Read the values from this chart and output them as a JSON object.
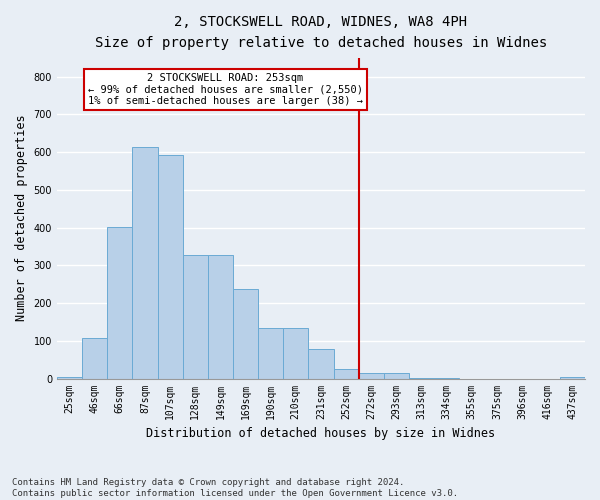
{
  "title": "2, STOCKSWELL ROAD, WIDNES, WA8 4PH",
  "subtitle": "Size of property relative to detached houses in Widnes",
  "xlabel": "Distribution of detached houses by size in Widnes",
  "ylabel": "Number of detached properties",
  "footnote": "Contains HM Land Registry data © Crown copyright and database right 2024.\nContains public sector information licensed under the Open Government Licence v3.0.",
  "bar_labels": [
    "25sqm",
    "46sqm",
    "66sqm",
    "87sqm",
    "107sqm",
    "128sqm",
    "149sqm",
    "169sqm",
    "190sqm",
    "210sqm",
    "231sqm",
    "252sqm",
    "272sqm",
    "293sqm",
    "313sqm",
    "334sqm",
    "355sqm",
    "375sqm",
    "396sqm",
    "416sqm",
    "437sqm"
  ],
  "bar_values": [
    5,
    107,
    402,
    614,
    593,
    328,
    328,
    236,
    135,
    135,
    77,
    25,
    14,
    14,
    2,
    2,
    0,
    0,
    0,
    0,
    5
  ],
  "bar_color": "#b8d0e8",
  "bar_edge_color": "#6aaad4",
  "annotation_line1": "2 STOCKSWELL ROAD: 253sqm",
  "annotation_line2": "← 99% of detached houses are smaller (2,550)",
  "annotation_line3": "1% of semi-detached houses are larger (38) →",
  "annotation_box_edge": "#cc0000",
  "ylim": [
    0,
    850
  ],
  "yticks": [
    0,
    100,
    200,
    300,
    400,
    500,
    600,
    700,
    800
  ],
  "bg_color": "#e8eef5",
  "plot_bg_color": "#e8eef5",
  "grid_color": "#ffffff",
  "vline_x_index": 11,
  "vline_color": "#cc0000",
  "title_fontsize": 10,
  "subtitle_fontsize": 9,
  "tick_fontsize": 7,
  "ylabel_fontsize": 8.5,
  "xlabel_fontsize": 8.5,
  "footnote_fontsize": 6.5
}
